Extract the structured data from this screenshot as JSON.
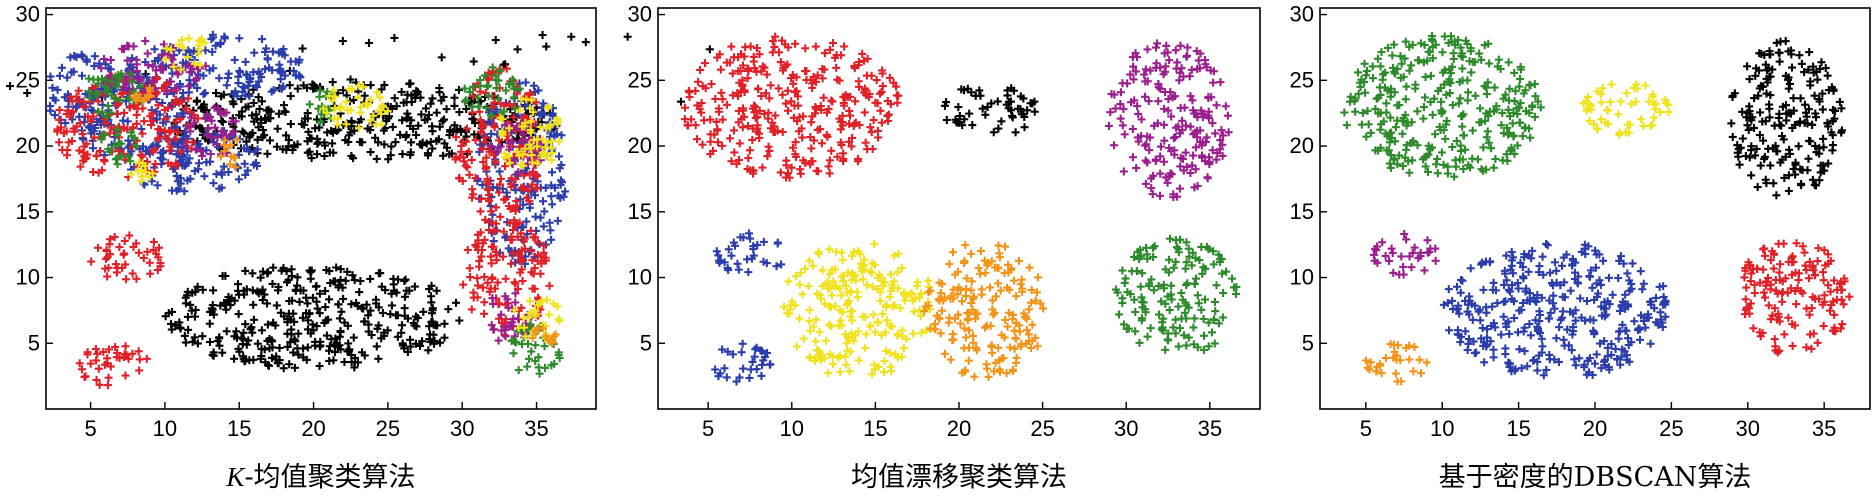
{
  "chart_data": [
    {
      "type": "scatter",
      "title": "K-均值聚类算法",
      "title_prefix": "K",
      "title_rest": "-均值聚类算法",
      "xlim": [
        2,
        39
      ],
      "ylim": [
        0,
        30.5
      ],
      "xticks": [
        5,
        10,
        15,
        20,
        25,
        30,
        35
      ],
      "yticks": [
        5,
        10,
        15,
        20,
        25,
        30
      ],
      "marker": "+",
      "series": [
        {
          "color": "#000000",
          "points": [
            [
              20,
              7,
              10,
              4
            ],
            [
              17.5,
              23.6,
              29.1,
              -1.1
            ],
            [
              23.1,
              21.9,
              13.6,
              3.0
            ],
            [
              36.3,
              27.9,
              25.6,
              -0.7
            ],
            [
              17.2,
              25.8,
              27.8,
              -2.4
            ]
          ]
        },
        {
          "color": "#2b3dab",
          "points": [
            [
              11.5,
              19,
              5,
              2.5
            ],
            [
              8,
              22,
              4,
              3.5
            ],
            [
              34,
              18,
              3,
              7
            ],
            [
              13.5,
              26,
              6,
              2.5
            ],
            [
              4.5,
              24,
              2.5,
              3
            ]
          ]
        },
        {
          "color": "#e02027",
          "points": [
            [
              7.5,
              21.5,
              5,
              4
            ],
            [
              6.5,
              3.3,
              2.5,
              1.6
            ],
            [
              7.5,
              11.5,
              2.5,
              1.8
            ],
            [
              32.5,
              20,
              3,
              6
            ],
            [
              33,
              10,
              3,
              4.5
            ]
          ]
        },
        {
          "color": "#9a1f8e",
          "points": [
            [
              9,
              26,
              4,
              2
            ],
            [
              13,
              21,
              2,
              2
            ],
            [
              34,
              20,
              2,
              2
            ],
            [
              33,
              7,
              2,
              2
            ]
          ]
        },
        {
          "color": "#2d8a2a",
          "points": [
            [
              6.5,
              24,
              2,
              2
            ],
            [
              7,
              20,
              1.5,
              1.5
            ],
            [
              20.5,
              23,
              1.2,
              1.3
            ],
            [
              32,
              24,
              2,
              2
            ],
            [
              35,
              4.5,
              2,
              2
            ]
          ]
        },
        {
          "color": "#f0e21c",
          "points": [
            [
              23,
              23,
              2.4,
              1.8
            ],
            [
              34.5,
              21,
              2.2,
              3
            ],
            [
              11.5,
              27,
              1.5,
              1.5
            ],
            [
              35,
              7,
              1.6,
              1.8
            ],
            [
              8.5,
              18,
              1,
              1
            ]
          ]
        },
        {
          "color": "#f39419",
          "points": [
            [
              14.5,
              19.5,
              0.8,
              1.2
            ],
            [
              8.5,
              24,
              0.6,
              0.8
            ],
            [
              35.5,
              5.5,
              0.8,
              0.8
            ]
          ]
        }
      ]
    },
    {
      "type": "scatter",
      "title": "均值漂移聚类算法",
      "xlim": [
        2,
        38
      ],
      "ylim": [
        0,
        30.5
      ],
      "xticks": [
        5,
        10,
        15,
        20,
        25,
        30,
        35
      ],
      "yticks": [
        5,
        10,
        15,
        20,
        25,
        30
      ],
      "marker": "+",
      "series": [
        {
          "color": "#e02027",
          "points": [
            [
              10,
              23,
              6.5,
              5.5
            ]
          ]
        },
        {
          "color": "#000000",
          "points": [
            [
              22,
              22.8,
              3,
              2
            ]
          ]
        },
        {
          "color": "#9a1f8e",
          "points": [
            [
              32.5,
              22,
              3.7,
              6
            ]
          ]
        },
        {
          "color": "#2d8a2a",
          "points": [
            [
              33,
              8.5,
              3.7,
              4.5
            ]
          ]
        },
        {
          "color": "#2b3dab",
          "points": [
            [
              7.5,
              11.8,
              2.2,
              1.6
            ],
            [
              7,
              3.5,
              2,
              1.6
            ]
          ]
        },
        {
          "color": "#f0e21c",
          "points": [
            [
              14,
              7.5,
              4.7,
              5.2
            ]
          ]
        },
        {
          "color": "#f39419",
          "points": [
            [
              21.5,
              7.5,
              3.8,
              5.2
            ]
          ]
        }
      ]
    },
    {
      "type": "scatter",
      "title": "基于密度的DBSCAN算法",
      "xlim": [
        2,
        38
      ],
      "ylim": [
        0,
        30.5
      ],
      "xticks": [
        5,
        10,
        15,
        20,
        25,
        30,
        35
      ],
      "yticks": [
        5,
        10,
        15,
        20,
        25,
        30
      ],
      "marker": "+",
      "series": [
        {
          "color": "#2d8a2a",
          "points": [
            [
              10,
              23,
              6.5,
              5.5
            ]
          ]
        },
        {
          "color": "#f0e21c",
          "points": [
            [
              22,
              22.8,
              3,
              2
            ]
          ]
        },
        {
          "color": "#000000",
          "points": [
            [
              32.5,
              22,
              3.7,
              6
            ]
          ]
        },
        {
          "color": "#e02027",
          "points": [
            [
              33,
              8.5,
              3.7,
              4.5
            ]
          ]
        },
        {
          "color": "#9a1f8e",
          "points": [
            [
              7.5,
              11.8,
              2.2,
              1.6
            ]
          ]
        },
        {
          "color": "#f39419",
          "points": [
            [
              7,
              3.5,
              2,
              1.6
            ]
          ]
        },
        {
          "color": "#2b3dab",
          "points": [
            [
              17.5,
              7.5,
              7.5,
              5.2
            ]
          ]
        }
      ]
    }
  ]
}
